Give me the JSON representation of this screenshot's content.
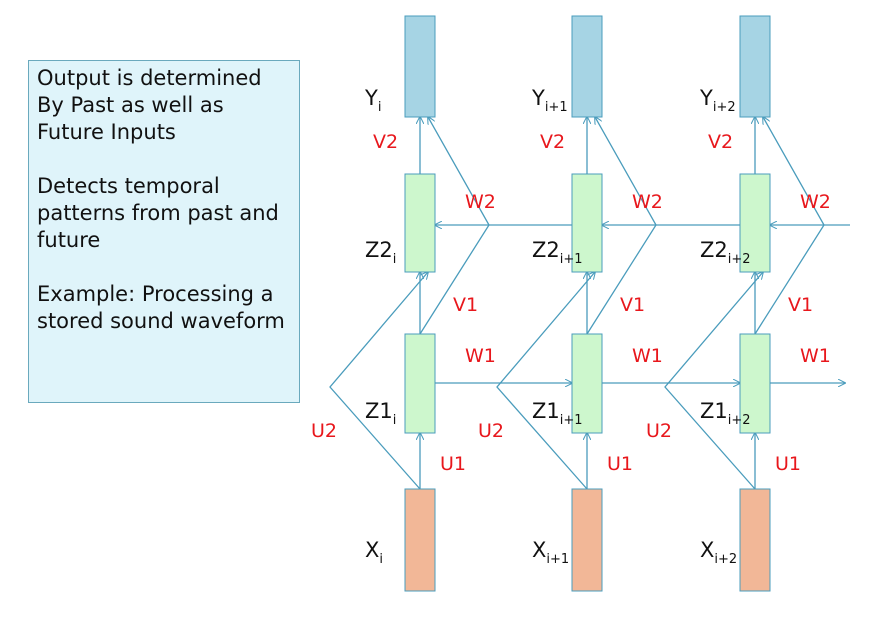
{
  "note": {
    "lines": [
      "Output is determined By Past as well as Future Inputs",
      "Detects temporal patterns from past and future",
      "Example: Processing a stored sound waveform"
    ]
  },
  "columns": [
    {
      "y_base": "Y",
      "y_sub": "i",
      "z2_base": "Z2",
      "z2_sub": "i",
      "z1_base": "Z1",
      "z1_sub": "i",
      "x_base": "X",
      "x_sub": "i"
    },
    {
      "y_base": "Y",
      "y_sub": "i+1",
      "z2_base": "Z2",
      "z2_sub": "i+1",
      "z1_base": "Z1",
      "z1_sub": "i+1",
      "x_base": "X",
      "x_sub": "i+1"
    },
    {
      "y_base": "Y",
      "y_sub": "i+2",
      "z2_base": "Z2",
      "z2_sub": "i+2",
      "z1_base": "Z1",
      "z1_sub": "i+2",
      "x_base": "X",
      "x_sub": "i+2"
    }
  ],
  "weights": {
    "v2": "V2",
    "w2": "W2",
    "v1": "V1",
    "w1": "W1",
    "u1": "U1",
    "u2": "U2"
  },
  "colors": {
    "output_box": "#a6d4e4",
    "hidden_box": "#cdf7cd",
    "input_box": "#f2b797",
    "box_stroke": "#4a9cbc",
    "connection": "#4a9cbc",
    "weight_label": "#e8171c",
    "note_bg": "#dff4fa"
  }
}
